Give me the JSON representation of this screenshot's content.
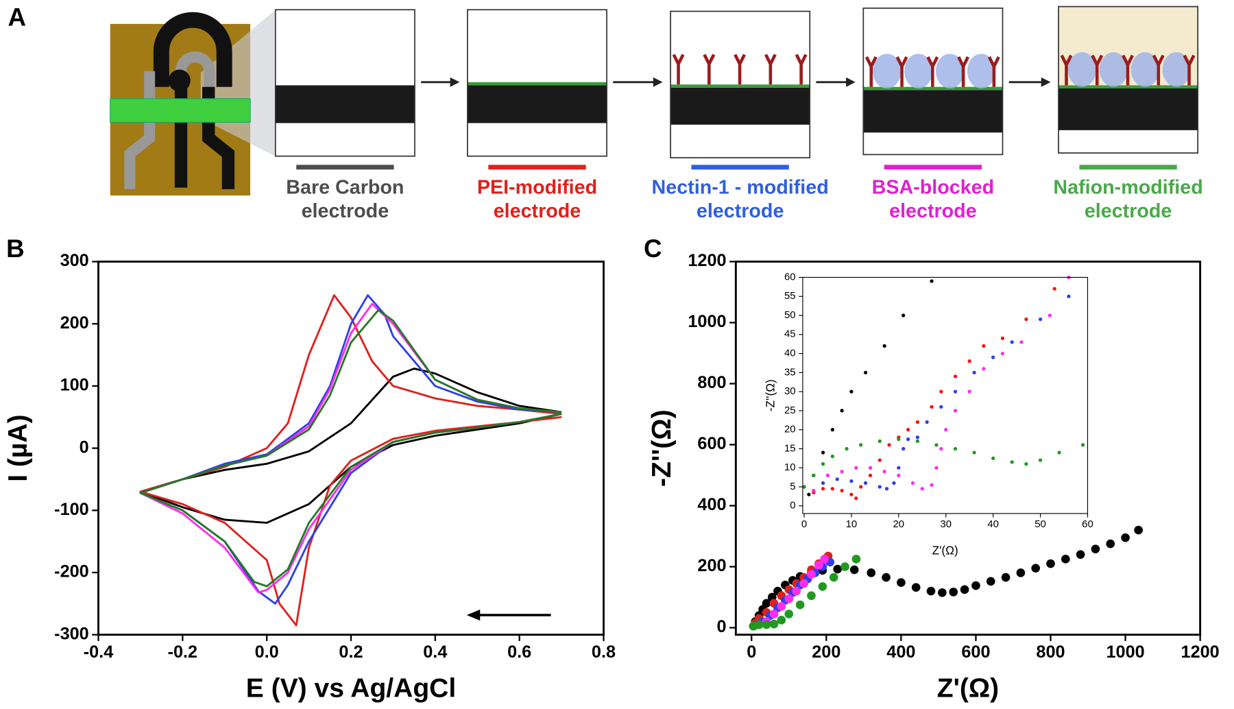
{
  "panel_labels": [
    "A",
    "B",
    "C"
  ],
  "schematic": {
    "steps": [
      {
        "lines": [
          "Bare Carbon",
          "electrode"
        ],
        "color": "#4d4d4d"
      },
      {
        "lines": [
          "PEI-modified",
          "electrode"
        ],
        "color": "#e0201b"
      },
      {
        "lines": [
          "Nectin-1 - modified",
          "electrode"
        ],
        "color": "#2f5fe0"
      },
      {
        "lines": [
          "BSA-blocked",
          "electrode"
        ],
        "color": "#e020d0"
      },
      {
        "lines": [
          "Nafion-modified",
          "electrode"
        ],
        "color": "#4aa84a"
      }
    ]
  },
  "chart_data": [
    {
      "type": "line",
      "xlabel": "E (V) vs Ag/AgCl",
      "ylabel": "I (µA)",
      "xlim": [
        -0.4,
        0.8
      ],
      "ylim": [
        -300,
        300
      ],
      "xticks": [
        -0.4,
        -0.2,
        {
          "value": 0,
          "label": "0.0"
        },
        0.2,
        0.4,
        0.6,
        0.8
      ],
      "yticks": [
        -300,
        -200,
        -100,
        0,
        100,
        200,
        300
      ],
      "series": [
        {
          "color": "#000000",
          "x": [
            0.7,
            0.6,
            0.5,
            0.4,
            0.3,
            0.2,
            0.1,
            0.0,
            -0.1,
            -0.2,
            -0.3,
            -0.2,
            -0.1,
            0.0,
            0.1,
            0.2,
            0.3,
            0.35,
            0.4,
            0.5,
            0.6,
            0.7
          ],
          "values": [
            55,
            40,
            30,
            20,
            5,
            -30,
            -90,
            -120,
            -115,
            -95,
            -70,
            -50,
            -35,
            -25,
            -5,
            40,
            115,
            128,
            120,
            90,
            68,
            58
          ]
        },
        {
          "color": "#e0201b",
          "x": [
            0.7,
            0.6,
            0.5,
            0.4,
            0.3,
            0.2,
            0.15,
            0.1,
            0.07,
            0.03,
            0.0,
            -0.1,
            -0.2,
            -0.3,
            -0.2,
            -0.1,
            0.0,
            0.05,
            0.1,
            0.16,
            0.2,
            0.25,
            0.3,
            0.4,
            0.5,
            0.6,
            0.7
          ],
          "values": [
            50,
            42,
            35,
            28,
            15,
            -20,
            -60,
            -160,
            -285,
            -250,
            -180,
            -120,
            -90,
            -70,
            -50,
            -30,
            0,
            40,
            150,
            246,
            210,
            140,
            100,
            80,
            68,
            62,
            55
          ]
        },
        {
          "color": "#2f3fe8",
          "x": [
            0.7,
            0.6,
            0.5,
            0.4,
            0.3,
            0.2,
            0.1,
            0.05,
            0.02,
            -0.02,
            -0.1,
            -0.2,
            -0.3,
            -0.2,
            -0.1,
            0.0,
            0.1,
            0.15,
            0.2,
            0.24,
            0.28,
            0.3,
            0.4,
            0.5,
            0.6,
            0.7
          ],
          "values": [
            55,
            42,
            33,
            25,
            10,
            -40,
            -150,
            -220,
            -250,
            -230,
            -150,
            -100,
            -72,
            -50,
            -25,
            -10,
            40,
            100,
            200,
            246,
            215,
            180,
            100,
            75,
            62,
            58
          ]
        },
        {
          "color": "#ff2bf0",
          "x": [
            0.7,
            0.6,
            0.5,
            0.4,
            0.3,
            0.2,
            0.1,
            0.05,
            0.0,
            -0.02,
            -0.1,
            -0.2,
            -0.3,
            -0.2,
            -0.1,
            0.0,
            0.1,
            0.15,
            0.2,
            0.25,
            0.3,
            0.4,
            0.5,
            0.6,
            0.7
          ],
          "values": [
            55,
            42,
            33,
            25,
            10,
            -35,
            -130,
            -200,
            -228,
            -232,
            -160,
            -105,
            -72,
            -50,
            -28,
            -12,
            35,
            95,
            185,
            232,
            200,
            110,
            78,
            64,
            58
          ]
        },
        {
          "color": "#237a23",
          "x": [
            0.7,
            0.6,
            0.5,
            0.4,
            0.3,
            0.2,
            0.1,
            0.05,
            0.0,
            -0.03,
            -0.1,
            -0.2,
            -0.3,
            -0.2,
            -0.1,
            0.0,
            0.1,
            0.15,
            0.2,
            0.265,
            0.3,
            0.4,
            0.5,
            0.6,
            0.7
          ],
          "values": [
            55,
            42,
            33,
            25,
            10,
            -30,
            -120,
            -195,
            -222,
            -215,
            -150,
            -100,
            -72,
            -50,
            -28,
            -12,
            30,
            85,
            170,
            222,
            205,
            110,
            78,
            64,
            58
          ]
        }
      ]
    },
    {
      "type": "scatter",
      "xlabel": "Z'(Ω)",
      "ylabel": "-Z''(Ω)",
      "xlim": [
        -42,
        1200
      ],
      "ylim": [
        -23,
        1200
      ],
      "xticks": [
        0,
        200,
        400,
        600,
        800,
        1000,
        1200
      ],
      "yticks": [
        0,
        200,
        400,
        600,
        800,
        1000,
        1200
      ],
      "series": [
        {
          "color": "#000000",
          "x": [
            5,
            10,
            20,
            30,
            40,
            55,
            70,
            90,
            110,
            130,
            160,
            190,
            230,
            275,
            320,
            360,
            400,
            440,
            480,
            510,
            540,
            570,
            600,
            640,
            680,
            720,
            760,
            800,
            840,
            880,
            920,
            960,
            1000,
            1035
          ],
          "values": [
            5,
            20,
            40,
            60,
            80,
            100,
            120,
            140,
            155,
            168,
            180,
            188,
            192,
            190,
            180,
            165,
            148,
            132,
            120,
            115,
            117,
            125,
            138,
            152,
            165,
            180,
            195,
            210,
            225,
            240,
            258,
            275,
            295,
            320
          ]
        },
        {
          "color": "#e0201b",
          "x": [
            5,
            10,
            20,
            40,
            60,
            80,
            100,
            120,
            140,
            160,
            180,
            205
          ],
          "values": [
            5,
            15,
            30,
            50,
            80,
            105,
            125,
            145,
            165,
            190,
            210,
            235
          ]
        },
        {
          "color": "#2f3fe8",
          "x": [
            5,
            15,
            30,
            50,
            70,
            90,
            110,
            130,
            150,
            170,
            190,
            210
          ],
          "values": [
            5,
            10,
            20,
            40,
            65,
            90,
            115,
            140,
            160,
            180,
            200,
            215
          ]
        },
        {
          "color": "#ff2bf0",
          "x": [
            5,
            20,
            40,
            60,
            80,
            100,
            120,
            140,
            160,
            180,
            195
          ],
          "values": [
            5,
            10,
            20,
            45,
            70,
            95,
            120,
            145,
            175,
            205,
            225
          ]
        },
        {
          "color": "#1f9a1f",
          "x": [
            5,
            20,
            40,
            60,
            80,
            100,
            130,
            160,
            190,
            220,
            250,
            280
          ],
          "values": [
            5,
            10,
            10,
            12,
            25,
            45,
            75,
            105,
            135,
            165,
            200,
            225
          ]
        }
      ]
    },
    {
      "type": "scatter",
      "xlabel": "Z'(Ω)",
      "ylabel": "-Z''(Ω)",
      "xlim": [
        -0.3,
        60
      ],
      "ylim": [
        -2,
        60
      ],
      "xticks": [
        0,
        10,
        20,
        30,
        40,
        50,
        60
      ],
      "yticks": [
        0,
        5,
        10,
        15,
        20,
        25,
        30,
        35,
        40,
        45,
        50,
        55,
        60
      ],
      "series": [
        {
          "color": "#000000",
          "x": [
            0,
            1,
            2,
            4,
            6,
            8,
            10,
            13,
            17,
            21,
            27
          ],
          "values": [
            5,
            3,
            8,
            14,
            20,
            25,
            30,
            35,
            42,
            50,
            59
          ]
        },
        {
          "color": "#ff1010",
          "x": [
            0,
            2,
            4,
            6,
            8,
            10,
            11,
            12,
            14,
            16,
            18,
            20,
            22,
            24,
            27,
            29,
            32,
            35,
            38,
            42,
            47,
            53
          ],
          "values": [
            5,
            3.5,
            4.5,
            4.5,
            4,
            3,
            2,
            5,
            8,
            12,
            16,
            18,
            20,
            22,
            26,
            30,
            34,
            38,
            42,
            44,
            49,
            57
          ]
        },
        {
          "color": "#2f3fe8",
          "x": [
            0,
            2,
            4,
            7,
            10,
            13,
            16,
            17.5,
            19,
            20,
            21,
            22,
            24,
            26,
            29,
            32,
            36,
            40,
            44,
            50,
            56
          ],
          "values": [
            5,
            4,
            6,
            7,
            6.5,
            6,
            5,
            4.5,
            6,
            10,
            15,
            17.5,
            18,
            22,
            26,
            30,
            35,
            39,
            43,
            49,
            55
          ]
        },
        {
          "color": "#ff2bf0",
          "x": [
            0,
            2,
            5,
            8,
            11,
            14,
            17,
            20,
            23,
            25,
            27,
            28,
            29,
            30,
            32,
            35,
            38,
            42,
            46,
            52,
            56
          ],
          "values": [
            5,
            4,
            8,
            9,
            10,
            10,
            9,
            8,
            6,
            4.5,
            5.5,
            10,
            15,
            20,
            25,
            30,
            36,
            40,
            43,
            50,
            60
          ]
        },
        {
          "color": "#1f9a1f",
          "x": [
            0,
            2,
            4,
            6,
            9,
            12,
            16,
            20,
            24,
            28,
            32,
            36,
            40,
            44,
            47,
            50,
            54,
            59
          ],
          "values": [
            5,
            8,
            11,
            13,
            15,
            16,
            17,
            17.5,
            17,
            16,
            15,
            14,
            12.5,
            11.5,
            11,
            12,
            14,
            16
          ]
        }
      ]
    }
  ]
}
